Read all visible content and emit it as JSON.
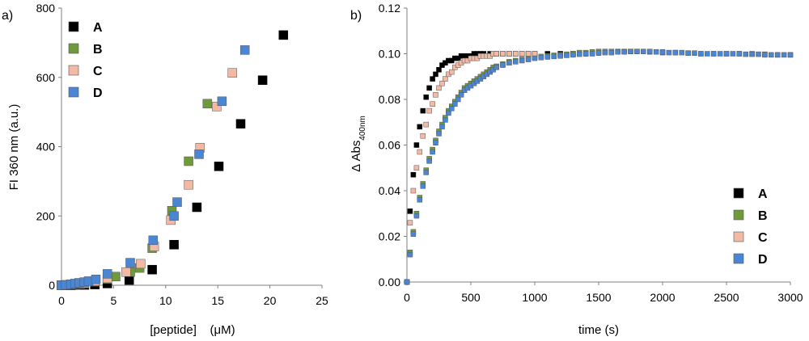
{
  "colors": {
    "A": "#000000",
    "B": "#6f9a3c",
    "C": "#f2b9a5",
    "D": "#4a86d4"
  },
  "chart_data": [
    {
      "panel_label": "a)",
      "type": "scatter",
      "xlabel": "[peptide]    (μM)",
      "ylabel": "FI 360 nm (a.u.)",
      "xlim": [
        0,
        25
      ],
      "ylim": [
        0,
        800
      ],
      "xticks": [
        0,
        5,
        10,
        15,
        20,
        25
      ],
      "yticks": [
        0,
        200,
        400,
        600,
        800
      ],
      "xtick_labels": [
        "0",
        "5",
        "10",
        "15",
        "20",
        "25"
      ],
      "ytick_labels": [
        "0",
        "200",
        "400",
        "600",
        "800"
      ],
      "legend_position": "top-left",
      "series": [
        {
          "name": "A",
          "x": [
            0,
            0.4,
            0.9,
            1.3,
            2.2,
            3.2,
            4.4,
            6.5,
            8.7,
            10.8,
            13.0,
            15.1,
            17.2,
            19.3,
            21.3
          ],
          "y": [
            0,
            0,
            0,
            1,
            1,
            2,
            5,
            15,
            45,
            117,
            225,
            343,
            466,
            592,
            722
          ]
        },
        {
          "name": "B",
          "x": [
            0,
            0.4,
            0.9,
            1.3,
            1.8,
            2.2,
            3.2,
            4.4,
            5.2,
            6.6,
            7.5,
            8.7,
            10.6,
            12.2,
            14.0
          ],
          "y": [
            0,
            1,
            2,
            3,
            4,
            5,
            10,
            18,
            25,
            38,
            50,
            107,
            215,
            358,
            524
          ]
        },
        {
          "name": "C",
          "x": [
            0,
            0.4,
            0.9,
            1.3,
            1.8,
            2.2,
            3.2,
            4.4,
            6.2,
            7.6,
            8.9,
            10.5,
            12.2,
            13.3,
            14.9,
            16.4
          ],
          "y": [
            0,
            1,
            2,
            3,
            4,
            6,
            12,
            20,
            38,
            62,
            112,
            188,
            290,
            397,
            516,
            613
          ]
        },
        {
          "name": "D",
          "x": [
            0,
            0.4,
            0.9,
            1.3,
            1.7,
            2.2,
            2.6,
            3.3,
            4.4,
            6.6,
            8.8,
            10.8,
            11.1,
            13.2,
            15.4,
            17.6
          ],
          "y": [
            0,
            1,
            3,
            5,
            7,
            9,
            12,
            17,
            33,
            65,
            130,
            200,
            240,
            378,
            531,
            679
          ]
        }
      ]
    },
    {
      "panel_label": "b)",
      "type": "scatter",
      "xlabel": "time (s)",
      "ylabel": "Δ Abs",
      "ylabel_subscript": "400nm",
      "xlim": [
        0,
        3000
      ],
      "ylim": [
        0,
        0.12
      ],
      "xticks": [
        0,
        500,
        1000,
        1500,
        2000,
        2500,
        3000
      ],
      "yticks": [
        0,
        0.02,
        0.04,
        0.06,
        0.08,
        0.1,
        0.12
      ],
      "xtick_labels": [
        "0",
        "500",
        "1000",
        "1500",
        "2000",
        "2500",
        "3000"
      ],
      "ytick_labels": [
        "0.00",
        "0.02",
        "0.04",
        "0.06",
        "0.08",
        "0.10",
        "0.12"
      ],
      "legend_position": "bottom-right",
      "series": [
        {
          "name": "A",
          "x": [
            0,
            25,
            50,
            75,
            100,
            125,
            150,
            175,
            200,
            225,
            250,
            275,
            300,
            325,
            350,
            375,
            400,
            425,
            450,
            475,
            500,
            525,
            550,
            575,
            600,
            650,
            700,
            750,
            800,
            850,
            900,
            950,
            1000,
            1100,
            1200,
            1300,
            1400
          ],
          "y": [
            0,
            0.031,
            0.047,
            0.06,
            0.068,
            0.075,
            0.081,
            0.085,
            0.089,
            0.091,
            0.093,
            0.095,
            0.096,
            0.097,
            0.097,
            0.098,
            0.098,
            0.099,
            0.099,
            0.099,
            0.099,
            0.1,
            0.1,
            0.1,
            0.1,
            0.1,
            0.1,
            0.1,
            0.1,
            0.1,
            0.1,
            0.1,
            0.1,
            0.1,
            0.1,
            0.1,
            0.1
          ]
        },
        {
          "name": "B",
          "x": [
            0,
            25,
            50,
            75,
            100,
            125,
            150,
            175,
            200,
            225,
            250,
            275,
            300,
            325,
            350,
            375,
            400,
            425,
            450,
            475,
            500,
            525,
            550,
            575,
            600,
            625,
            650,
            675,
            700,
            750,
            800,
            850,
            900,
            950,
            1000,
            1050,
            1100,
            1150,
            1200,
            1250,
            1300,
            1350,
            1400,
            1450,
            1500,
            1550,
            1600,
            1650,
            1700,
            1750,
            1800,
            1900,
            2000,
            2100,
            2200,
            2300,
            2400,
            2500,
            2600,
            2700,
            2800,
            2900,
            3000
          ],
          "y": [
            0,
            0.013,
            0.022,
            0.03,
            0.037,
            0.043,
            0.049,
            0.054,
            0.058,
            0.062,
            0.066,
            0.069,
            0.072,
            0.075,
            0.077,
            0.079,
            0.081,
            0.083,
            0.085,
            0.086,
            0.087,
            0.088,
            0.089,
            0.09,
            0.091,
            0.092,
            0.093,
            0.094,
            0.0945,
            0.0955,
            0.0965,
            0.097,
            0.0975,
            0.098,
            0.0985,
            0.0988,
            0.099,
            0.0993,
            0.0995,
            0.0998,
            0.1,
            0.1005,
            0.1005,
            0.1008,
            0.101,
            0.101,
            0.101,
            0.101,
            0.101,
            0.101,
            0.101,
            0.1008,
            0.1005,
            0.1005,
            0.1003,
            0.1,
            0.1,
            0.1,
            0.1,
            0.1,
            0.0998,
            0.0995,
            0.0995
          ]
        },
        {
          "name": "C",
          "x": [
            0,
            25,
            50,
            75,
            100,
            125,
            150,
            175,
            200,
            225,
            250,
            275,
            300,
            325,
            350,
            375,
            400,
            425,
            450,
            475,
            500,
            525,
            550,
            575,
            600,
            625,
            650,
            675,
            700,
            750,
            800,
            850,
            900,
            950,
            1000
          ],
          "y": [
            0,
            0.026,
            0.04,
            0.05,
            0.057,
            0.064,
            0.069,
            0.075,
            0.078,
            0.082,
            0.085,
            0.087,
            0.089,
            0.091,
            0.092,
            0.094,
            0.095,
            0.096,
            0.097,
            0.097,
            0.098,
            0.098,
            0.098,
            0.099,
            0.099,
            0.099,
            0.099,
            0.1,
            0.1,
            0.1,
            0.1,
            0.1,
            0.1,
            0.1,
            0.1
          ]
        },
        {
          "name": "D",
          "x": [
            0,
            25,
            50,
            75,
            100,
            125,
            150,
            175,
            200,
            225,
            250,
            275,
            300,
            325,
            350,
            375,
            400,
            425,
            450,
            475,
            500,
            525,
            550,
            575,
            600,
            625,
            650,
            675,
            700,
            750,
            800,
            850,
            900,
            950,
            1000,
            1050,
            1100,
            1150,
            1200,
            1250,
            1300,
            1350,
            1400,
            1450,
            1500,
            1550,
            1600,
            1650,
            1700,
            1750,
            1800,
            1850,
            1900,
            1950,
            2000,
            2050,
            2100,
            2150,
            2200,
            2250,
            2300,
            2350,
            2400,
            2450,
            2500,
            2550,
            2600,
            2650,
            2700,
            2750,
            2800,
            2850,
            2900,
            2950,
            3000
          ],
          "y": [
            0,
            0.012,
            0.021,
            0.029,
            0.036,
            0.042,
            0.048,
            0.053,
            0.057,
            0.061,
            0.065,
            0.068,
            0.071,
            0.074,
            0.076,
            0.078,
            0.08,
            0.082,
            0.084,
            0.085,
            0.086,
            0.087,
            0.088,
            0.089,
            0.09,
            0.091,
            0.092,
            0.093,
            0.094,
            0.095,
            0.096,
            0.0965,
            0.097,
            0.0975,
            0.098,
            0.0983,
            0.0986,
            0.0988,
            0.099,
            0.0993,
            0.0995,
            0.0998,
            0.1,
            0.1,
            0.1003,
            0.1005,
            0.1005,
            0.1008,
            0.1008,
            0.101,
            0.101,
            0.101,
            0.101,
            0.1008,
            0.1008,
            0.1005,
            0.1005,
            0.1005,
            0.1003,
            0.1003,
            0.1,
            0.1,
            0.1,
            0.1,
            0.1,
            0.1,
            0.1,
            0.0998,
            0.0998,
            0.0998,
            0.0995,
            0.0995,
            0.0995,
            0.0995,
            0.0995
          ]
        }
      ]
    }
  ]
}
